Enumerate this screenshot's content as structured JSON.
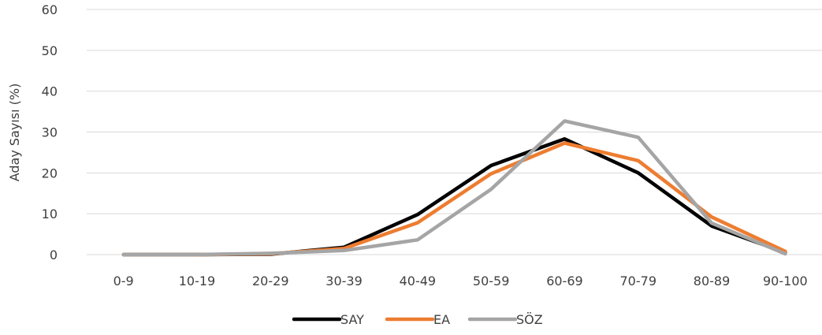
{
  "chart_data": {
    "type": "line",
    "title": "",
    "xlabel": "",
    "ylabel": "Aday Sayısı (%)",
    "categories": [
      "0-9",
      "10-19",
      "20-29",
      "30-39",
      "40-49",
      "50-59",
      "60-69",
      "70-79",
      "80-89",
      "90-100"
    ],
    "ylim": [
      0,
      60
    ],
    "yticks": [
      "0",
      "10",
      "20",
      "30",
      "40",
      "50",
      "60"
    ],
    "grid": "horizontal",
    "legend_position": "bottom",
    "series": [
      {
        "name": "SAY",
        "color": "#000000",
        "values": [
          0,
          0,
          0.1,
          1.8,
          9.8,
          21.8,
          28.3,
          20.0,
          7.0,
          0.5
        ]
      },
      {
        "name": "EA",
        "color": "#ED7D31",
        "values": [
          0,
          0,
          0.2,
          1.5,
          7.8,
          19.8,
          27.3,
          23.0,
          9.2,
          0.8
        ]
      },
      {
        "name": "SÖZ",
        "color": "#A5A5A5",
        "values": [
          0,
          0,
          0.3,
          1.0,
          3.6,
          16.0,
          32.7,
          28.7,
          7.7,
          0.2
        ]
      }
    ]
  }
}
